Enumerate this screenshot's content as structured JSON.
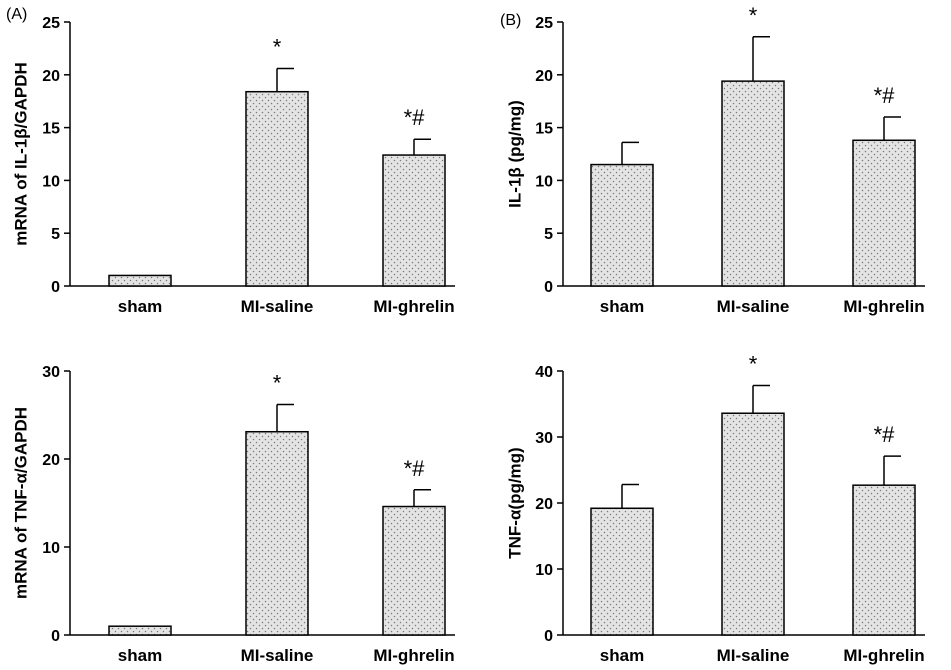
{
  "panel_labels": [
    "(A)",
    "(B)"
  ],
  "chart_data": [
    {
      "type": "bar",
      "ylabel": "mRNA of IL-1β/GAPDH",
      "categories": [
        "sham",
        "MI-saline",
        "MI-ghrelin"
      ],
      "values": [
        1.0,
        18.4,
        12.4
      ],
      "errors": [
        0.0,
        2.2,
        1.5
      ],
      "annotations": [
        "",
        "*",
        "*#"
      ],
      "ylim": [
        0,
        25
      ],
      "yticks": [
        0,
        5,
        10,
        15,
        20,
        25
      ]
    },
    {
      "type": "bar",
      "ylabel": "IL-1β (pg/mg)",
      "categories": [
        "sham",
        "MI-saline",
        "MI-ghrelin"
      ],
      "values": [
        11.5,
        19.4,
        13.8
      ],
      "errors": [
        2.1,
        4.2,
        2.2
      ],
      "annotations": [
        "",
        "*",
        "*#"
      ],
      "ylim": [
        0,
        25
      ],
      "yticks": [
        0,
        5,
        10,
        15,
        20,
        25
      ]
    },
    {
      "type": "bar",
      "ylabel": "mRNA of TNF-α/GAPDH",
      "categories": [
        "sham",
        "MI-saline",
        "MI-ghrelin"
      ],
      "values": [
        1.0,
        23.1,
        14.6
      ],
      "errors": [
        0.0,
        3.1,
        1.9
      ],
      "annotations": [
        "",
        "*",
        "*#"
      ],
      "ylim": [
        0,
        30
      ],
      "yticks": [
        0,
        10,
        20,
        30
      ]
    },
    {
      "type": "bar",
      "ylabel": "TNF-α(pg/mg)",
      "categories": [
        "sham",
        "MI-saline",
        "MI-ghrelin"
      ],
      "values": [
        19.2,
        33.6,
        22.7
      ],
      "errors": [
        3.6,
        4.2,
        4.4
      ],
      "annotations": [
        "",
        "*",
        "*#"
      ],
      "ylim": [
        0,
        40
      ],
      "yticks": [
        0,
        10,
        20,
        30,
        40
      ]
    }
  ]
}
